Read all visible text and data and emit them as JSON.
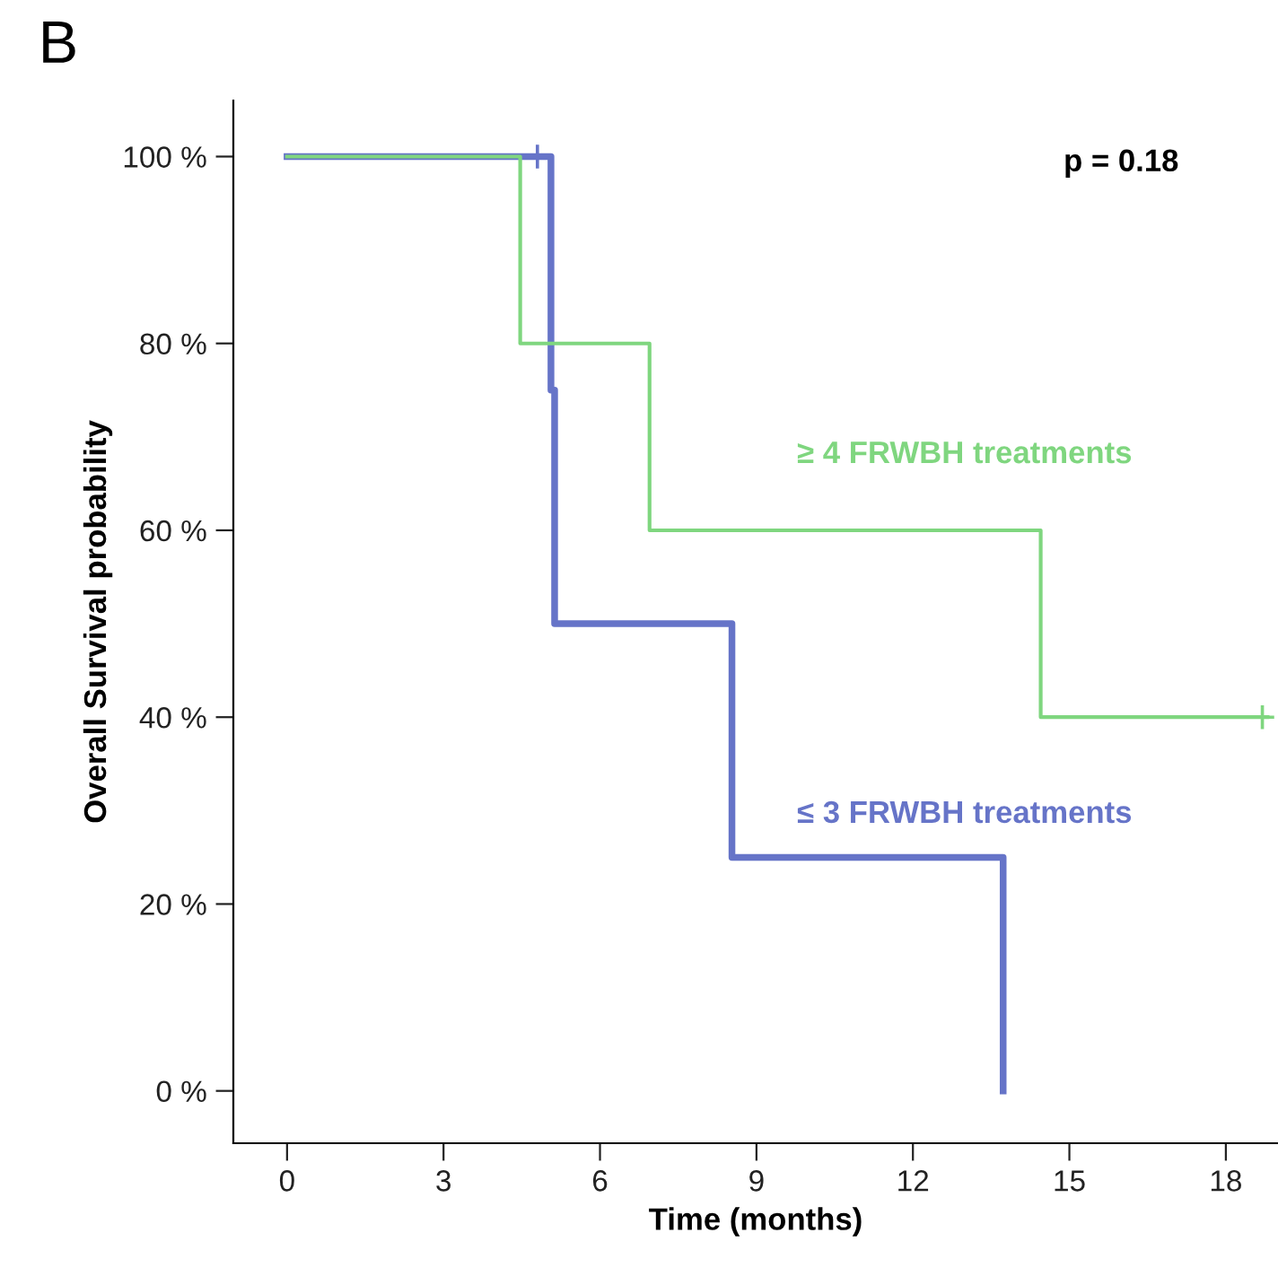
{
  "chart_data": {
    "type": "step",
    "title": "B",
    "xlabel": "Time (months)",
    "ylabel": "Overall Survival probability",
    "annotations": [
      "p = 0.18"
    ],
    "series": [
      {
        "name": "≥ 4 FRWBH treatments",
        "color": "#7fd67f",
        "x": [
          0,
          4.47,
          6.95,
          14.45,
          18.8
        ],
        "values": [
          100,
          80,
          60,
          40,
          40
        ]
      },
      {
        "name": "≤ 3 FRWBH treatments",
        "color": "#6674c8",
        "x": [
          0,
          5.06,
          5.13,
          8.53,
          13.73
        ],
        "values": [
          100,
          75,
          50,
          25,
          0
        ]
      },
      {
        "type": "scatter",
        "marker": "cross",
        "color": "#7fd67f",
        "x": [
          18.7
        ],
        "values": [
          40
        ]
      },
      {
        "type": "scatter",
        "marker": "cross",
        "color": "#6674c8",
        "x": [
          4.8
        ],
        "values": [
          100
        ]
      }
    ],
    "xlim": [
      -1.03,
      19.0
    ],
    "ylim": [
      -5.6,
      106
    ],
    "xticks": [
      0,
      3,
      6,
      9,
      12,
      15,
      18
    ],
    "yticks": [
      {
        "value": 0,
        "label": "0 %"
      },
      {
        "value": 20,
        "label": "20 %"
      },
      {
        "value": 40,
        "label": "40 %"
      },
      {
        "value": 60,
        "label": "60 %"
      },
      {
        "value": 80,
        "label": "80 %"
      },
      {
        "value": 100,
        "label": "100 %"
      }
    ],
    "grid": false,
    "legend": false
  }
}
